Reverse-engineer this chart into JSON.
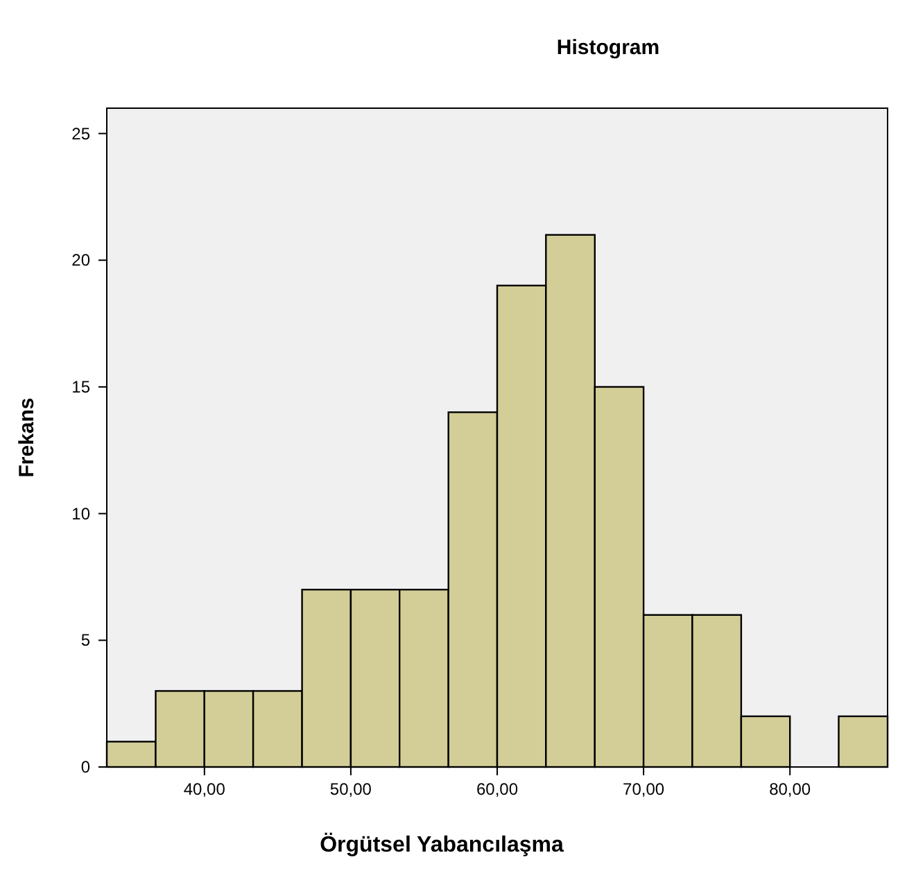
{
  "chart_data": {
    "type": "histogram",
    "title": "Histogram",
    "xlabel": "Örgütsel Yabancılaşma",
    "ylabel": "Frekans",
    "bins": [
      33.33,
      36.67,
      40,
      43.33,
      46.67,
      50,
      53.33,
      56.67,
      60,
      63.33,
      66.67,
      70,
      73.33,
      76.67,
      80,
      83.33,
      86.67
    ],
    "values": [
      1,
      3,
      3,
      3,
      7,
      7,
      7,
      14,
      19,
      21,
      15,
      6,
      6,
      2,
      0,
      2
    ],
    "color": "#d3ce97",
    "xlim": [
      33.33,
      86.67
    ],
    "xticks": [
      {
        "value": 40,
        "label": "40,00"
      },
      {
        "value": 50,
        "label": "50,00"
      },
      {
        "value": 60,
        "label": "60,00"
      },
      {
        "value": 70,
        "label": "70,00"
      },
      {
        "value": 80,
        "label": "80,00"
      }
    ],
    "ylim": [
      0,
      26
    ],
    "yticks": [
      0,
      5,
      10,
      15,
      20,
      25
    ],
    "grid": false
  }
}
